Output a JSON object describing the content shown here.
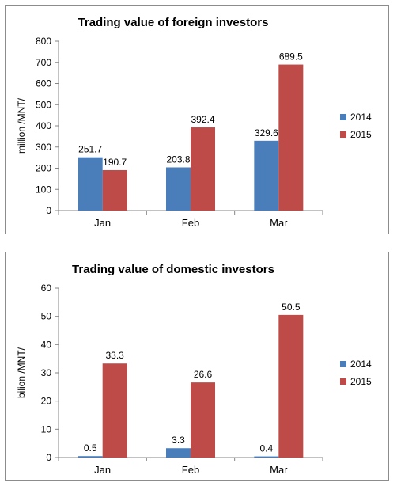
{
  "colors": {
    "2014": "#4a7ebb",
    "2015": "#be4b48",
    "axis": "#868686"
  },
  "chart_data": [
    {
      "type": "bar",
      "title": "Trading value of foreign investors",
      "ylabel": "million /MNT/",
      "xlabel": "",
      "categories": [
        "Jan",
        "Feb",
        "Mar"
      ],
      "ylim": [
        0,
        800
      ],
      "yticks": [
        0,
        100,
        200,
        300,
        400,
        500,
        600,
        700,
        800
      ],
      "grid": false,
      "legend": "right",
      "series": [
        {
          "name": "2014",
          "values": [
            251.7,
            203.8,
            329.6
          ],
          "labels": [
            "251.7",
            "203.8",
            "329.6"
          ]
        },
        {
          "name": "2015",
          "values": [
            190.7,
            392.4,
            689.5
          ],
          "labels": [
            "190.7",
            "392.4",
            "689.5"
          ]
        }
      ]
    },
    {
      "type": "bar",
      "title": "Trading value of domestic investors",
      "ylabel": "bilion /MNT/",
      "xlabel": "",
      "categories": [
        "Jan",
        "Feb",
        "Mar"
      ],
      "ylim": [
        0,
        60
      ],
      "yticks": [
        0,
        10,
        20,
        30,
        40,
        50,
        60
      ],
      "grid": false,
      "legend": "right",
      "series": [
        {
          "name": "2014",
          "values": [
            0.5,
            3.3,
            0.4
          ],
          "labels": [
            "0.5",
            "3.3",
            "0.4"
          ]
        },
        {
          "name": "2015",
          "values": [
            33.3,
            26.6,
            50.5
          ],
          "labels": [
            "33.3",
            "26.6",
            "50.5"
          ]
        }
      ]
    }
  ]
}
